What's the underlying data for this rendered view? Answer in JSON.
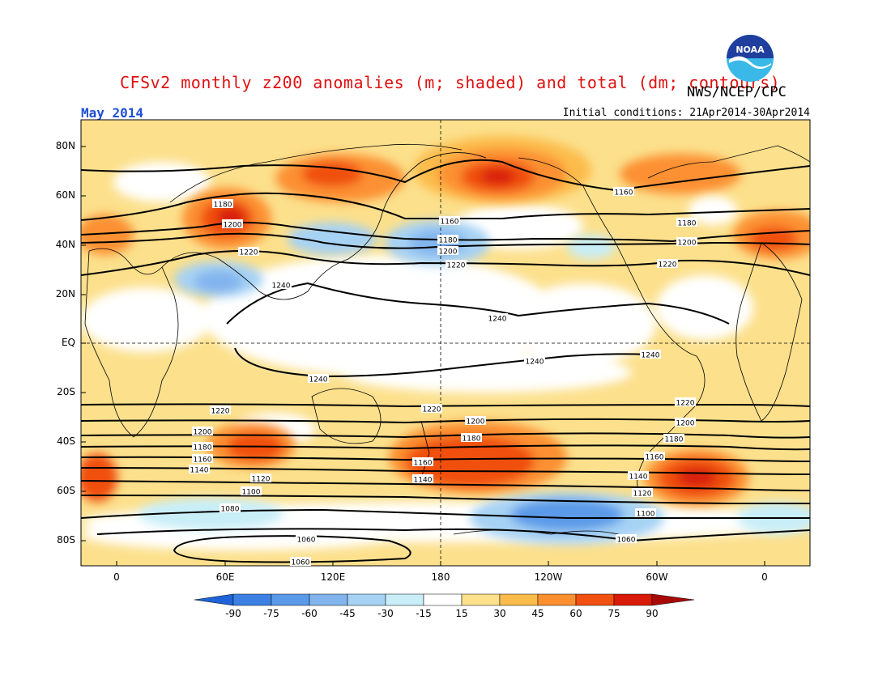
{
  "title": "CFSv2 monthly z200 anomalies (m; shaded) and total (dm; contours)",
  "credit": "NWS/NCEP/CPC",
  "logo_text": "NOAA",
  "month_label": "May 2014",
  "initial_conditions": "Initial conditions: 21Apr2014-30Apr2014",
  "lat_labels": [
    "80N",
    "60N",
    "40N",
    "20N",
    "EQ",
    "20S",
    "40S",
    "60S",
    "80S"
  ],
  "lon_labels": [
    "0",
    "60E",
    "120E",
    "180",
    "120W",
    "60W",
    "0"
  ],
  "colorbar": {
    "labels": [
      "-90",
      "-75",
      "-60",
      "-45",
      "-30",
      "-15",
      "15",
      "30",
      "45",
      "60",
      "75",
      "90"
    ],
    "colors": [
      "#1e64d8",
      "#3c80e4",
      "#5a9ae8",
      "#82b4ee",
      "#a6d2f4",
      "#c8eef8",
      "#ffffff",
      "#fce08c",
      "#fcbc4c",
      "#fc9030",
      "#f05010",
      "#d81a08",
      "#a80a08"
    ]
  },
  "contour_labels": [
    "1060",
    "1080",
    "1100",
    "1120",
    "1140",
    "1160",
    "1180",
    "1200",
    "1220",
    "1240"
  ]
}
